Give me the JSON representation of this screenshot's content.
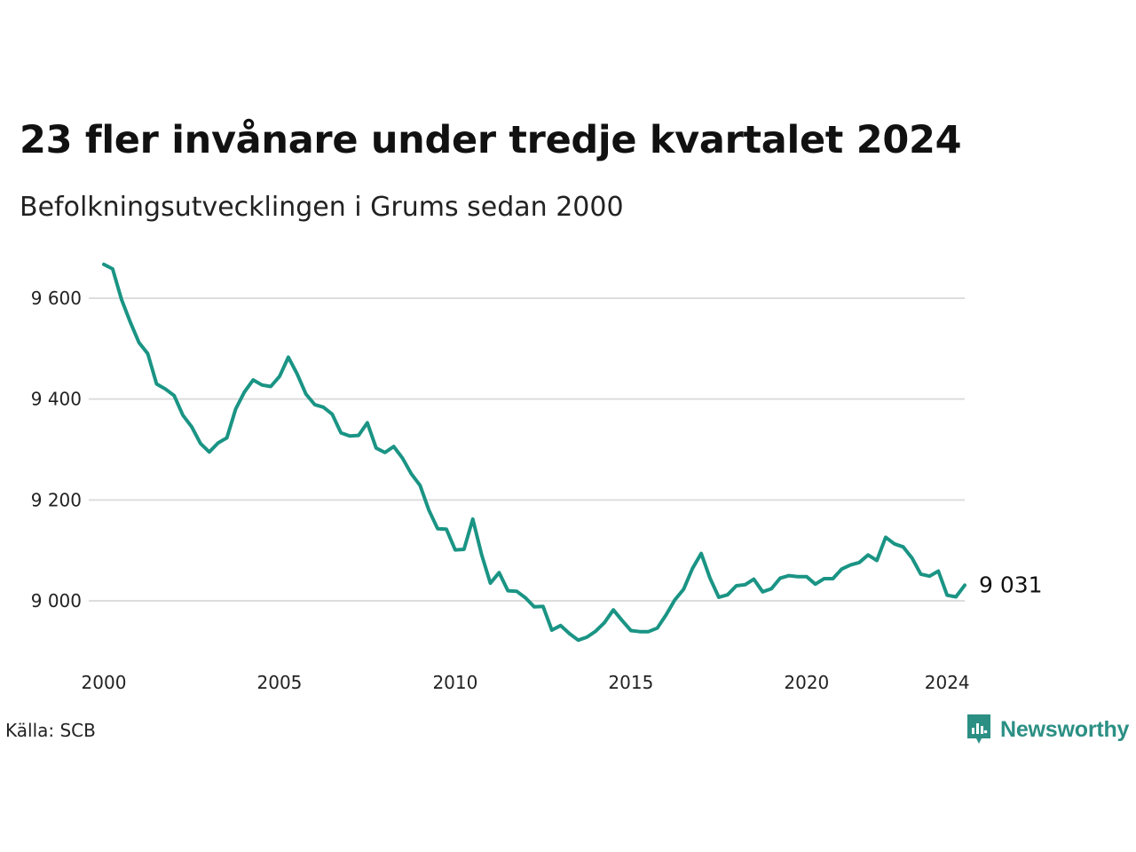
{
  "title": "23 fler invånare under tredje kvartalet 2024",
  "subtitle": "Befolkningsutvecklingen i Grums sedan 2000",
  "source": "Källa: SCB",
  "brand": {
    "name": "Newsworthy",
    "icon": "newsworthy-logo-icon",
    "color": "#2b8f84"
  },
  "colors": {
    "line": "#1a9484",
    "grid": "#dddddd"
  },
  "chart_data": {
    "type": "line",
    "title": "23 fler invånare under tredje kvartalet 2024",
    "subtitle": "Befolkningsutvecklingen i Grums sedan 2000",
    "xlabel": "",
    "ylabel": "",
    "grid": true,
    "legend": "none",
    "xlim": [
      2000,
      2024.5
    ],
    "ylim": [
      8900,
      9690
    ],
    "x_ticks": [
      2000,
      2005,
      2010,
      2015,
      2020,
      2024
    ],
    "x_tick_labels": [
      "2000",
      "2005",
      "2010",
      "2015",
      "2020",
      "2024"
    ],
    "y_ticks": [
      9000,
      9200,
      9400,
      9600
    ],
    "y_tick_labels": [
      "9 000",
      "9 200",
      "9 400",
      "9 600"
    ],
    "end_label": "9 031",
    "series": [
      {
        "x": [
          2000.0,
          2000.25,
          2000.5,
          2000.75,
          2001.0,
          2001.25,
          2001.5,
          2001.75,
          2002.0,
          2002.25,
          2002.5,
          2002.75,
          2003.0,
          2003.25,
          2003.5,
          2003.75,
          2004.0,
          2004.25,
          2004.5,
          2004.75,
          2005.0,
          2005.25,
          2005.5,
          2005.75,
          2006.0,
          2006.25,
          2006.5,
          2006.75,
          2007.0,
          2007.25,
          2007.5,
          2007.75,
          2008.0,
          2008.25,
          2008.5,
          2008.75,
          2009.0,
          2009.25,
          2009.5,
          2009.75,
          2010.0,
          2010.25,
          2010.5,
          2010.75,
          2011.0,
          2011.25,
          2011.5,
          2011.75,
          2012.0,
          2012.25,
          2012.5,
          2012.75,
          2013.0,
          2013.25,
          2013.5,
          2013.75,
          2014.0,
          2014.25,
          2014.5,
          2014.75,
          2015.0,
          2015.25,
          2015.5,
          2015.75,
          2016.0,
          2016.25,
          2016.5,
          2016.75,
          2017.0,
          2017.25,
          2017.5,
          2017.75,
          2018.0,
          2018.25,
          2018.5,
          2018.75,
          2019.0,
          2019.25,
          2019.5,
          2019.75,
          2020.0,
          2020.25,
          2020.5,
          2020.75,
          2021.0,
          2021.25,
          2021.5,
          2021.75,
          2022.0,
          2022.25,
          2022.5,
          2022.75,
          2023.0,
          2023.25,
          2023.5,
          2023.75,
          2024.0,
          2024.25,
          2024.5
        ],
        "y": [
          9667,
          9658,
          9598,
          9553,
          9512,
          9490,
          9430,
          9420,
          9407,
          9368,
          9345,
          9312,
          9295,
          9313,
          9323,
          9380,
          9414,
          9438,
          9428,
          9425,
          9445,
          9483,
          9450,
          9410,
          9389,
          9384,
          9370,
          9333,
          9327,
          9328,
          9353,
          9303,
          9294,
          9306,
          9283,
          9252,
          9229,
          9180,
          9143,
          9142,
          9101,
          9102,
          9162,
          9092,
          9035,
          9056,
          9020,
          9019,
          9006,
          8988,
          8989,
          8942,
          8951,
          8935,
          8922,
          8928,
          8940,
          8957,
          8982,
          8961,
          8941,
          8939,
          8939,
          8946,
          8972,
          9002,
          9023,
          9064,
          9094,
          9045,
          9007,
          9012,
          9030,
          9032,
          9043,
          9018,
          9024,
          9045,
          9050,
          9048,
          9048,
          9033,
          9044,
          9044,
          9063,
          9071,
          9076,
          9091,
          9080,
          9126,
          9113,
          9107,
          9085,
          9053,
          9049,
          9059,
          9011,
          9008,
          9031
        ]
      }
    ]
  }
}
